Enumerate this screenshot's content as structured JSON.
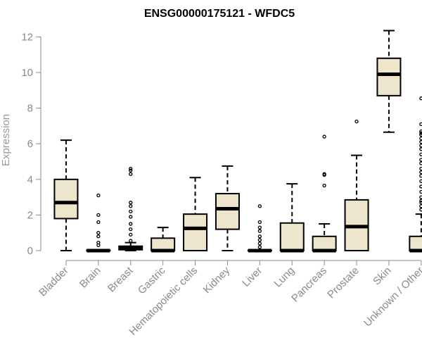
{
  "chart_data": {
    "type": "boxplot",
    "title": "ENSG00000175121 - WFDC5",
    "xlabel": "",
    "ylabel": "Expression",
    "ylim": [
      0,
      12.5
    ],
    "yticks": [
      0,
      2,
      4,
      6,
      8,
      10,
      12
    ],
    "box_fill": "#ede6cc",
    "categories": [
      "Bladder",
      "Brain",
      "Breast",
      "Gastric",
      "Hematopoietic cells",
      "Kidney",
      "Liver",
      "Lung",
      "Pancreas",
      "Prostate",
      "Skin",
      "Unknown / Other"
    ],
    "series": [
      {
        "category": "Bladder",
        "min": 0,
        "q1": 1.8,
        "median": 2.7,
        "q3": 4.0,
        "max": 6.2,
        "outliers": []
      },
      {
        "category": "Brain",
        "min": 0,
        "q1": 0,
        "median": 0,
        "q3": 0.02,
        "max": 0.05,
        "outliers": [
          0.3,
          0.45,
          0.8,
          1.0,
          1.6,
          2.0,
          3.1
        ]
      },
      {
        "category": "Breast",
        "min": 0,
        "q1": 0.05,
        "median": 0.12,
        "q3": 0.25,
        "max": 0.45,
        "outliers": [
          0.55,
          0.9,
          1.2,
          1.5,
          1.9,
          2.2,
          2.5,
          2.7,
          4.3,
          4.5,
          4.6
        ]
      },
      {
        "category": "Gastric",
        "min": 0,
        "q1": 0,
        "median": 0,
        "q3": 0.7,
        "max": 1.3,
        "outliers": []
      },
      {
        "category": "Hematopoietic cells",
        "min": 0,
        "q1": 0,
        "median": 1.25,
        "q3": 2.05,
        "max": 4.1,
        "outliers": []
      },
      {
        "category": "Kidney",
        "min": 0,
        "q1": 1.2,
        "median": 2.35,
        "q3": 3.2,
        "max": 4.75,
        "outliers": []
      },
      {
        "category": "Liver",
        "min": 0,
        "q1": 0,
        "median": 0,
        "q3": 0.02,
        "max": 0.05,
        "outliers": [
          0.2,
          0.4,
          0.6,
          0.8,
          1.1,
          1.3,
          1.6,
          2.5
        ]
      },
      {
        "category": "Lung",
        "min": 0,
        "q1": 0,
        "median": 0,
        "q3": 1.55,
        "max": 3.75,
        "outliers": []
      },
      {
        "category": "Pancreas",
        "min": 0,
        "q1": 0,
        "median": 0,
        "q3": 0.8,
        "max": 1.5,
        "outliers": [
          3.65,
          4.25,
          4.3,
          6.4
        ]
      },
      {
        "category": "Prostate",
        "min": 0,
        "q1": 0,
        "median": 1.35,
        "q3": 2.85,
        "max": 5.35,
        "outliers": [
          7.25
        ]
      },
      {
        "category": "Skin",
        "min": 6.65,
        "q1": 8.7,
        "median": 9.9,
        "q3": 10.8,
        "max": 12.35,
        "outliers": []
      },
      {
        "category": "Unknown / Other",
        "min": 0,
        "q1": 0,
        "median": 0,
        "q3": 0.8,
        "max": 2.05,
        "outliers": [
          2.3,
          2.5,
          2.7,
          2.8,
          3.0,
          3.3,
          3.6,
          3.9,
          4.2,
          4.4,
          4.6,
          4.9,
          5.1,
          5.4,
          5.7,
          5.9,
          6.1,
          6.3,
          6.5,
          6.6,
          6.7,
          7.1,
          8.55
        ]
      }
    ]
  }
}
